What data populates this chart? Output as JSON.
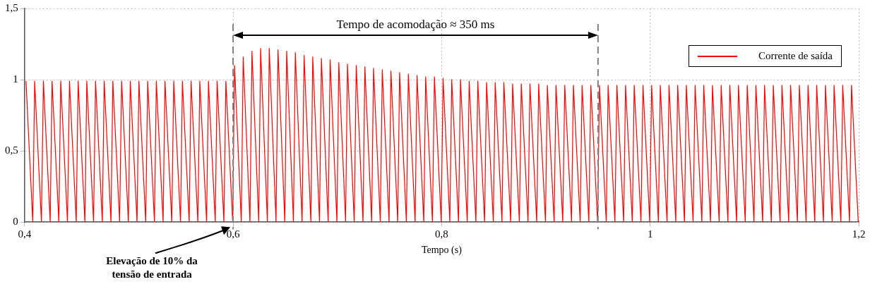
{
  "chart_data": {
    "type": "line",
    "xlabel": "Tempo (s)",
    "xlim": [
      0.4,
      1.2
    ],
    "xticks": [
      {
        "value": 0.4,
        "label": "0,4"
      },
      {
        "value": 0.6,
        "label": "0,6"
      },
      {
        "value": 0.8,
        "label": "0,8"
      },
      1,
      {
        "value": 1.2,
        "label": "1,2"
      }
    ],
    "ylim": [
      0,
      1.5
    ],
    "yticks": [
      0,
      {
        "value": 0.5,
        "label": "0,5"
      },
      1,
      {
        "value": 1.5,
        "label": "1,5"
      }
    ],
    "grid": true,
    "legend": "top right",
    "marker": "none",
    "line_style": "solid",
    "ref_lines": [
      {
        "axis": "x",
        "value": 0.6,
        "color": "#808080",
        "line_style": "dashed"
      },
      {
        "axis": "x",
        "value": 0.95,
        "color": "#808080",
        "line_style": "dashed"
      }
    ],
    "annotations": [
      "Tempo de acomodação ≈ 350 ms",
      "Elevação de 10% da tensão de entrada"
    ],
    "series": [
      {
        "name": "Corrente de saída",
        "color": "#ff0000",
        "x": [
          0.4014,
          0.4079,
          0.4097,
          0.4162,
          0.4181,
          0.4246,
          0.4264,
          0.4329,
          0.4347,
          0.4412,
          0.4431,
          0.4496,
          0.4514,
          0.4579,
          0.4597,
          0.4662,
          0.4681,
          0.4746,
          0.4764,
          0.4829,
          0.4847,
          0.4912,
          0.4931,
          0.4996,
          0.5014,
          0.5079,
          0.5097,
          0.5162,
          0.5181,
          0.5246,
          0.5264,
          0.5329,
          0.5347,
          0.5412,
          0.5431,
          0.5496,
          0.5514,
          0.5579,
          0.5597,
          0.5662,
          0.5681,
          0.5746,
          0.5764,
          0.5829,
          0.5847,
          0.5912,
          0.5931,
          0.5996,
          0.6014,
          0.6079,
          0.6097,
          0.6162,
          0.6181,
          0.6246,
          0.6264,
          0.6329,
          0.6347,
          0.6412,
          0.6431,
          0.6496,
          0.6514,
          0.6579,
          0.6597,
          0.6662,
          0.6681,
          0.6746,
          0.6764,
          0.6829,
          0.6847,
          0.6912,
          0.6931,
          0.6996,
          0.7014,
          0.7079,
          0.7097,
          0.7162,
          0.7181,
          0.7246,
          0.7264,
          0.7329,
          0.7347,
          0.7412,
          0.7431,
          0.7496,
          0.7514,
          0.7579,
          0.7597,
          0.7662,
          0.7681,
          0.7746,
          0.7764,
          0.7829,
          0.7847,
          0.7912,
          0.7931,
          0.7996,
          0.8014,
          0.8079,
          0.8097,
          0.8162,
          0.8181,
          0.8246,
          0.8264,
          0.8329,
          0.8347,
          0.8412,
          0.8431,
          0.8496,
          0.8514,
          0.8579,
          0.8597,
          0.8662,
          0.8681,
          0.8746,
          0.8764,
          0.8829,
          0.8847,
          0.8912,
          0.8931,
          0.8996,
          0.9014,
          0.9079,
          0.9097,
          0.9162,
          0.9181,
          0.9246,
          0.9264,
          0.9329,
          0.9347,
          0.9412,
          0.9431,
          0.9496,
          0.9514,
          0.9579,
          0.9597,
          0.9662,
          0.9681,
          0.9746,
          0.9764,
          0.9829,
          0.9847,
          0.9912,
          0.9931,
          0.9996,
          1.0014,
          1.0079,
          1.0097,
          1.0162,
          1.0181,
          1.0246,
          1.0264,
          1.0329,
          1.0347,
          1.0412,
          1.0431,
          1.0496,
          1.0514,
          1.0579,
          1.0597,
          1.0662,
          1.0681,
          1.0746,
          1.0764,
          1.0829,
          1.0847,
          1.0912,
          1.0931,
          1.0996,
          1.1014,
          1.1079,
          1.1097,
          1.1162,
          1.1181,
          1.1246,
          1.1264,
          1.1329,
          1.1347,
          1.1412,
          1.1431,
          1.1496,
          1.1514,
          1.1579,
          1.1597,
          1.1662,
          1.1681,
          1.1746,
          1.1764,
          1.1829,
          1.1847,
          1.1912,
          1.1931,
          1.1996
        ],
        "values": [
          0.99,
          0,
          0.99,
          0,
          0.99,
          0,
          0.99,
          0,
          0.99,
          0,
          0.99,
          0,
          0.99,
          0,
          0.99,
          0,
          0.99,
          0,
          0.99,
          0,
          0.99,
          0,
          0.99,
          0,
          0.99,
          0,
          0.99,
          0,
          0.99,
          0,
          0.99,
          0,
          0.99,
          0,
          0.99,
          0,
          0.99,
          0,
          0.99,
          0,
          0.99,
          0,
          0.99,
          0,
          0.99,
          0,
          0.99,
          0,
          1.1,
          0,
          1.16,
          0,
          1.2,
          0,
          1.22,
          0,
          1.22,
          0,
          1.21,
          0,
          1.2,
          0,
          1.19,
          0,
          1.17,
          0,
          1.16,
          0,
          1.15,
          0,
          1.14,
          0,
          1.12,
          0,
          1.11,
          0,
          1.1,
          0,
          1.09,
          0,
          1.08,
          0,
          1.07,
          0,
          1.06,
          0,
          1.05,
          0,
          1.04,
          0,
          1.03,
          0,
          1.02,
          0,
          1.02,
          0,
          1.01,
          0,
          1.0,
          0,
          1.0,
          0,
          0.99,
          0,
          0.99,
          0,
          0.98,
          0,
          0.98,
          0,
          0.98,
          0,
          0.97,
          0,
          0.97,
          0,
          0.97,
          0,
          0.97,
          0,
          0.96,
          0,
          0.96,
          0,
          0.96,
          0,
          0.96,
          0,
          0.96,
          0,
          0.96,
          0,
          0.96,
          0,
          0.96,
          0,
          0.96,
          0,
          0.96,
          0,
          0.96,
          0,
          0.96,
          0,
          0.96,
          0,
          0.96,
          0,
          0.96,
          0,
          0.96,
          0,
          0.96,
          0,
          0.96,
          0,
          0.96,
          0,
          0.96,
          0,
          0.96,
          0,
          0.96,
          0,
          0.96,
          0,
          0.96,
          0,
          0.96,
          0,
          0.96,
          0,
          0.96,
          0,
          0.96,
          0,
          0.96,
          0,
          0.96,
          0,
          0.96,
          0,
          0.96,
          0,
          0.96,
          0,
          0.96,
          0,
          0.96,
          0,
          0.96,
          0
        ]
      }
    ]
  }
}
